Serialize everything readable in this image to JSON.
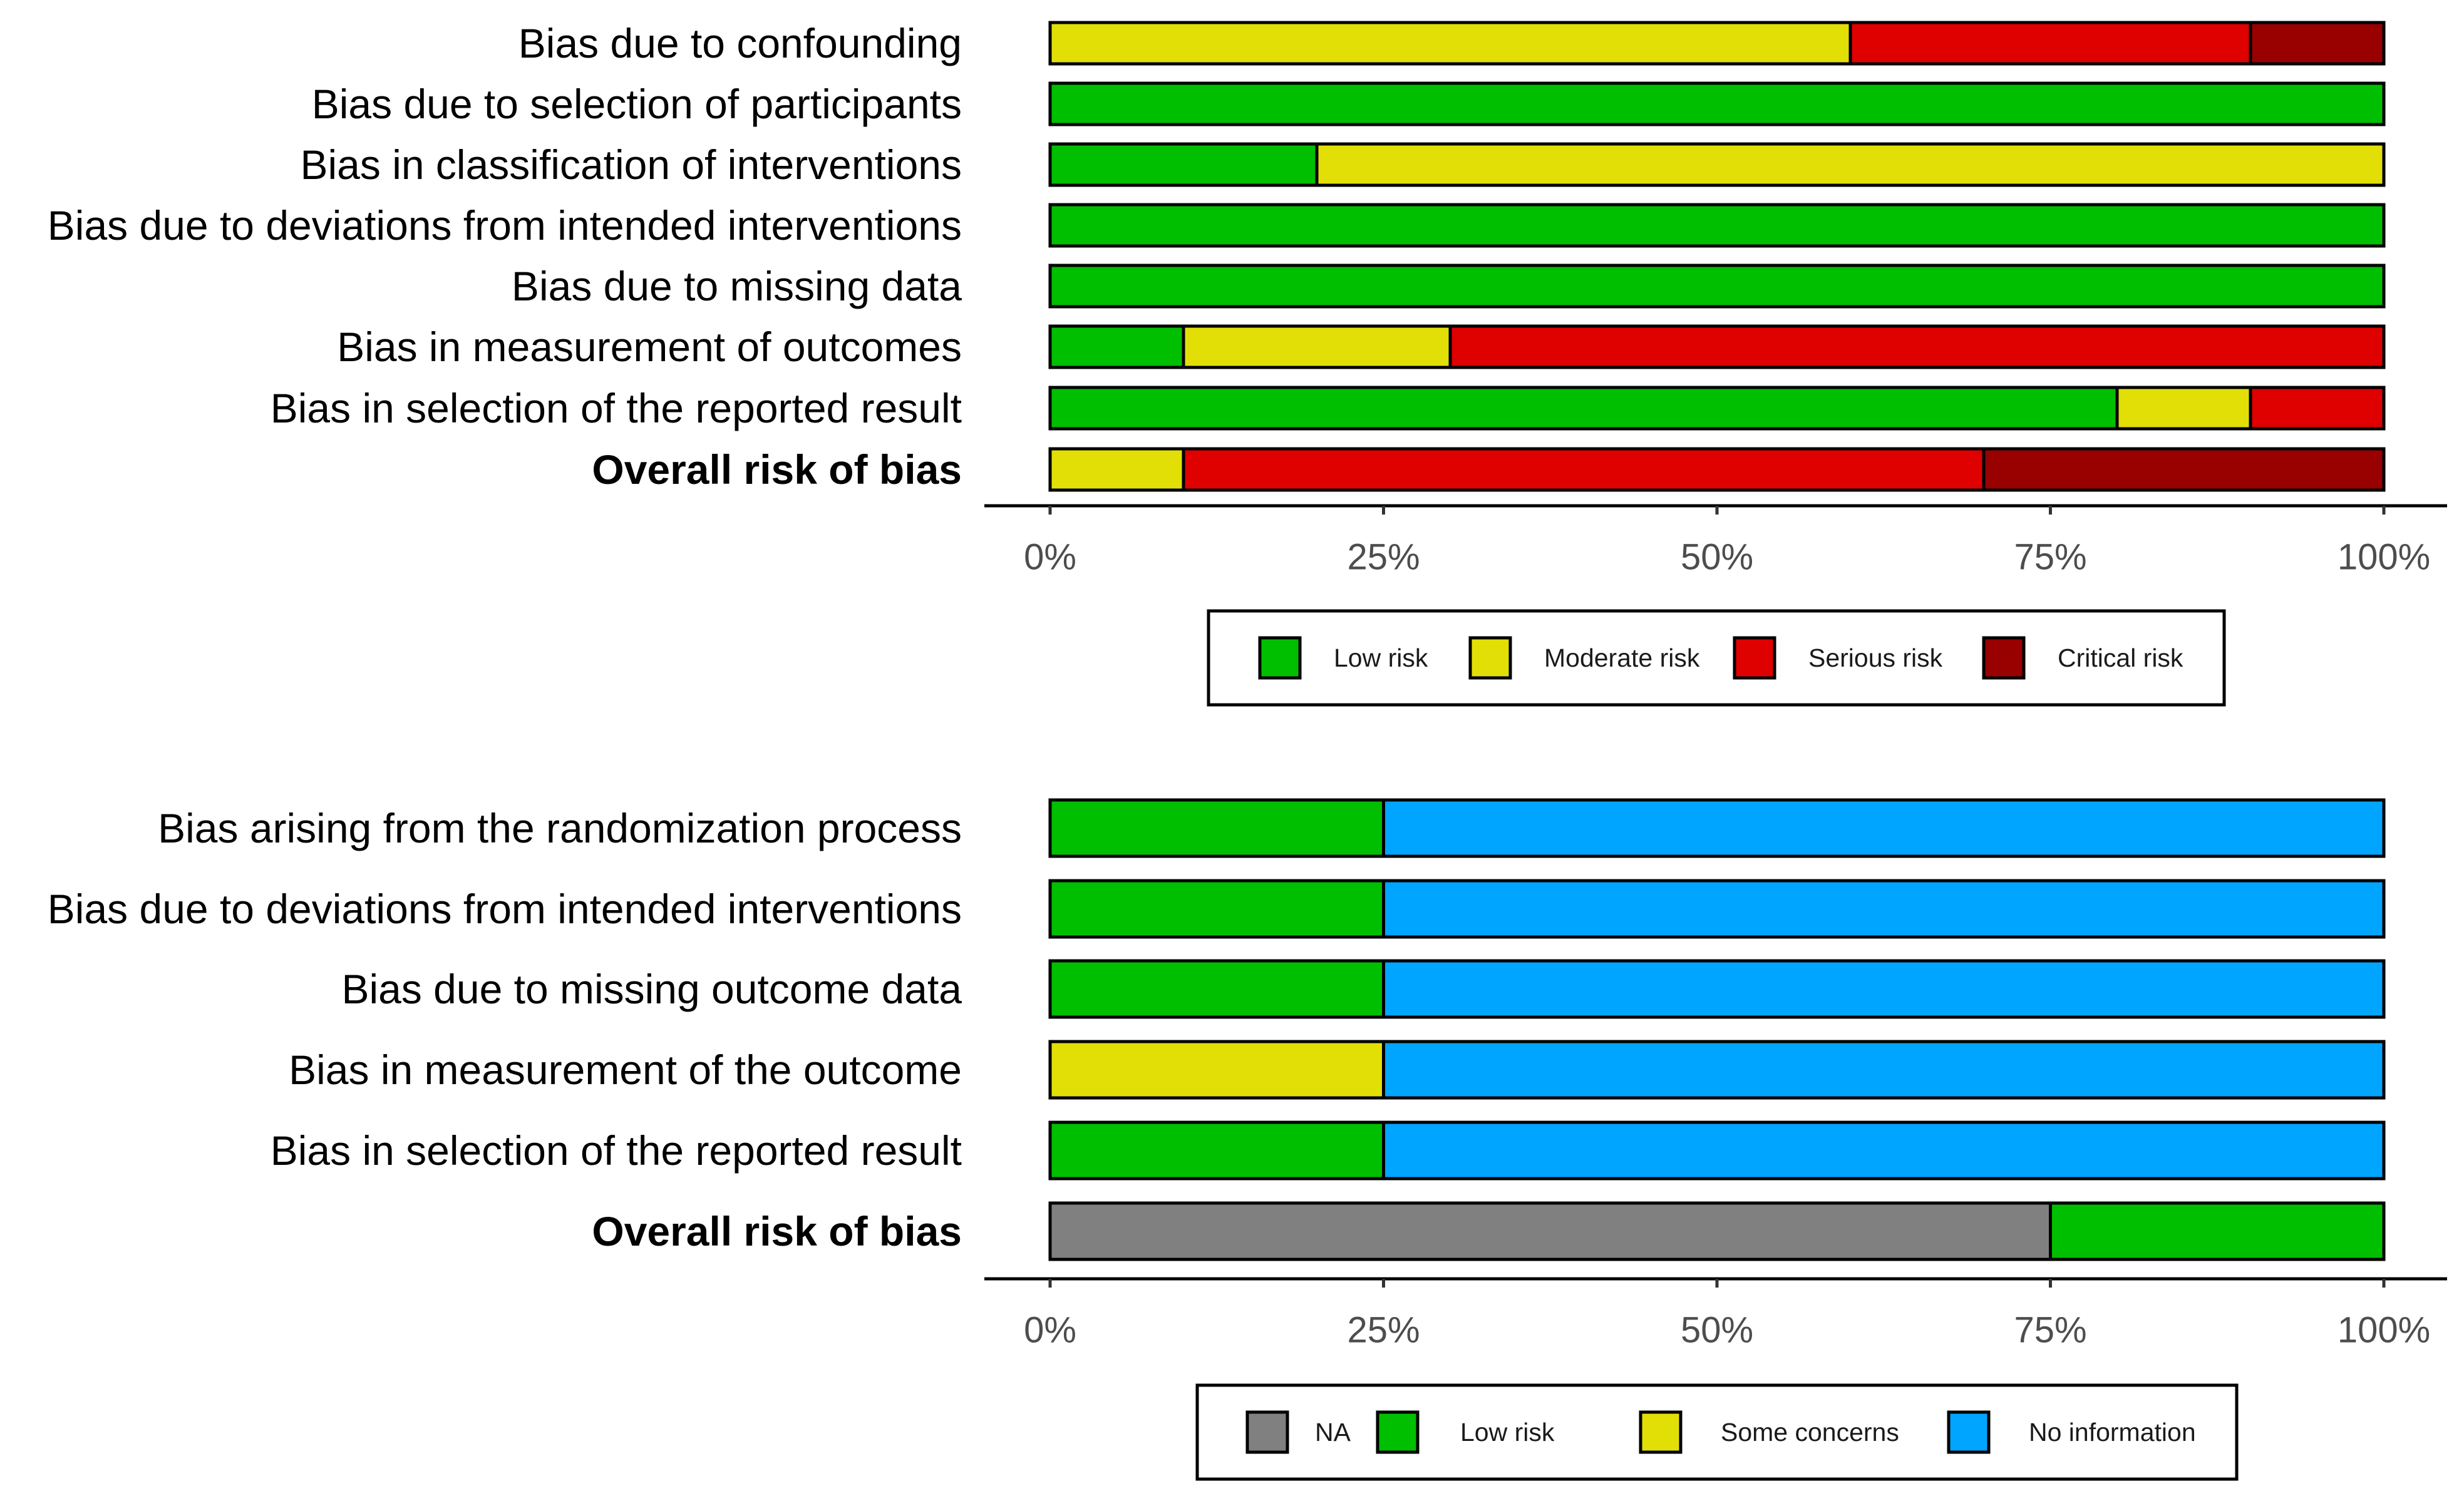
{
  "chart_data": [
    {
      "type": "bar",
      "stacked": true,
      "orientation": "horizontal",
      "categories": [
        "Bias due to confounding",
        "Bias due to selection of participants",
        "Bias in classification of interventions",
        "Bias due to deviations from intended interventions",
        "Bias due to missing data",
        "Bias in measurement of outcomes",
        "Bias in selection of the reported result",
        "Overall risk of bias"
      ],
      "bold_categories": [
        "Overall risk of bias"
      ],
      "series": [
        {
          "name": "Low risk",
          "color": "#00BF00",
          "values": [
            0,
            100,
            20,
            100,
            100,
            10,
            80,
            0
          ]
        },
        {
          "name": "Moderate risk",
          "color": "#E2DF07",
          "values": [
            60,
            0,
            80,
            0,
            0,
            20,
            10,
            10
          ]
        },
        {
          "name": "Serious risk",
          "color": "#DF0000",
          "values": [
            30,
            0,
            0,
            0,
            0,
            70,
            10,
            60
          ]
        },
        {
          "name": "Critical risk",
          "color": "#990000",
          "values": [
            10,
            0,
            0,
            0,
            0,
            0,
            0,
            30
          ]
        }
      ],
      "xlim": [
        0,
        100
      ],
      "xticks": [
        "0%",
        "25%",
        "50%",
        "75%",
        "100%"
      ],
      "legend": [
        "Low risk",
        "Moderate risk",
        "Serious risk",
        "Critical risk"
      ],
      "legend_position": "bottom"
    },
    {
      "type": "bar",
      "stacked": true,
      "orientation": "horizontal",
      "categories": [
        "Bias arising from the randomization process",
        "Bias due to deviations from intended interventions",
        "Bias due to missing outcome data",
        "Bias in measurement of the outcome",
        "Bias in selection of the reported result",
        "Overall risk of bias"
      ],
      "bold_categories": [
        "Overall risk of bias"
      ],
      "series": [
        {
          "name": "NA",
          "color": "#808080",
          "values": [
            0,
            0,
            0,
            0,
            0,
            75
          ]
        },
        {
          "name": "Low risk",
          "color": "#00BF00",
          "values": [
            25,
            25,
            25,
            0,
            25,
            25
          ]
        },
        {
          "name": "Some concerns",
          "color": "#E2DF07",
          "values": [
            0,
            0,
            0,
            25,
            0,
            0
          ]
        },
        {
          "name": "No information",
          "color": "#00A5FF",
          "values": [
            75,
            75,
            75,
            75,
            75,
            0
          ]
        }
      ],
      "xlim": [
        0,
        100
      ],
      "xticks": [
        "0%",
        "25%",
        "50%",
        "75%",
        "100%"
      ],
      "legend": [
        "NA",
        "Low risk",
        "Some concerns",
        "No information"
      ],
      "legend_position": "bottom"
    }
  ]
}
